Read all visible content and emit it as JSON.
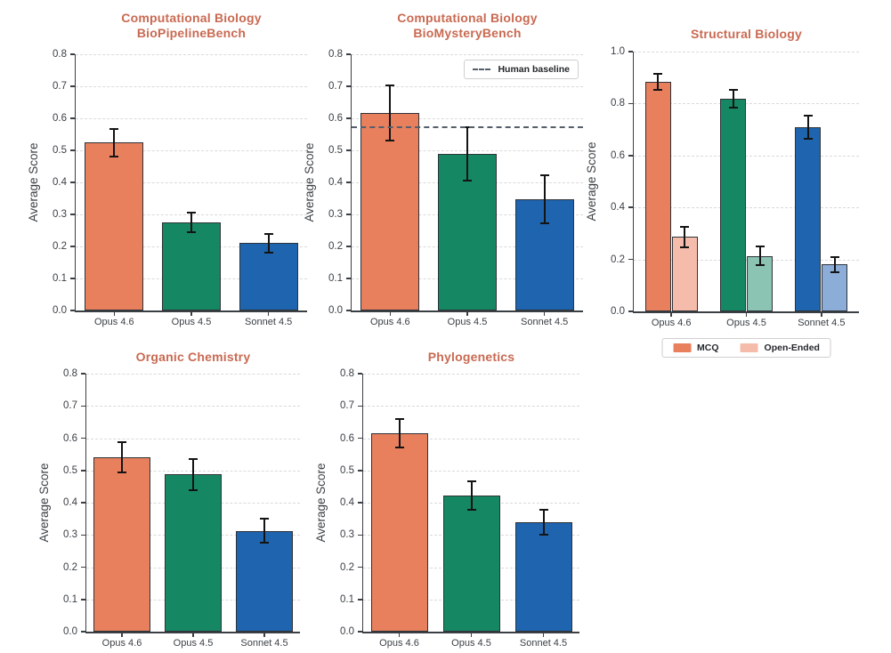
{
  "figure": {
    "background": "#FFFFFF",
    "description": "Five bar charts of model benchmark scores with error bars"
  },
  "colors": {
    "title": "#C96A52",
    "axis_text": "#3A3F44",
    "grid": "#DADADA",
    "bar_edge": "#2E3338",
    "error_bar": "#141414",
    "baseline": "#555E6B",
    "opus_46": "#E8805E",
    "opus_45": "#158863",
    "sonnet_45": "#1E64AF",
    "open_ended_orange": "#F5BCAB",
    "open_ended_green": "#8BC4B2",
    "open_ended_blue": "#8CADD8"
  },
  "chart_data": [
    {
      "id": "computational-biology-biopipelinebench",
      "type": "bar",
      "title": "Computational Biology\nBioPipelineBench",
      "ylabel": "Average Score",
      "ylim": [
        0,
        0.8
      ],
      "yticks": [
        0.0,
        0.1,
        0.2,
        0.3,
        0.4,
        0.5,
        0.6,
        0.7,
        0.8
      ],
      "grid": true,
      "categories": [
        "Opus 4.6",
        "Opus 4.5",
        "Sonnet 4.5"
      ],
      "values": [
        0.524,
        0.275,
        0.21
      ],
      "errors": [
        0.043,
        0.03,
        0.029
      ],
      "bar_colors": [
        "#E8805E",
        "#158863",
        "#1E64AF"
      ]
    },
    {
      "id": "computational-biology-biomysterybench",
      "type": "bar",
      "title": "Computational Biology\nBioMysteryBench",
      "ylabel": "Average Score",
      "ylim": [
        0,
        0.8
      ],
      "yticks": [
        0.0,
        0.1,
        0.2,
        0.3,
        0.4,
        0.5,
        0.6,
        0.7,
        0.8
      ],
      "grid": true,
      "categories": [
        "Opus 4.6",
        "Opus 4.5",
        "Sonnet 4.5"
      ],
      "values": [
        0.617,
        0.489,
        0.348
      ],
      "errors": [
        0.086,
        0.083,
        0.075
      ],
      "bar_colors": [
        "#E8805E",
        "#158863",
        "#1E64AF"
      ],
      "baseline": {
        "value": 0.575,
        "label": "Human baseline"
      },
      "legend": {
        "position": "top-right",
        "entries": [
          {
            "label": "Human baseline",
            "marker": "dashed-line"
          }
        ]
      }
    },
    {
      "id": "structural-biology",
      "type": "grouped_bar",
      "title": "Structural Biology",
      "ylabel": "Average Score",
      "ylim": [
        0,
        1.0
      ],
      "yticks": [
        0.0,
        0.2,
        0.4,
        0.6,
        0.8,
        1.0
      ],
      "grid": true,
      "categories": [
        "Opus 4.6",
        "Opus 4.5",
        "Sonnet 4.5"
      ],
      "series": [
        {
          "name": "MCQ",
          "values": [
            0.885,
            0.818,
            0.71
          ],
          "errors": [
            0.031,
            0.035,
            0.045
          ],
          "colors": [
            "#E8805E",
            "#158863",
            "#1E64AF"
          ]
        },
        {
          "name": "Open-Ended",
          "values": [
            0.287,
            0.214,
            0.18
          ],
          "errors": [
            0.04,
            0.036,
            0.03
          ],
          "colors": [
            "#F5BCAB",
            "#8BC4B2",
            "#8CADD8"
          ]
        }
      ],
      "legend": {
        "position": "bottom",
        "entries": [
          {
            "label": "MCQ",
            "swatch": "#E8805E"
          },
          {
            "label": "Open-Ended",
            "swatch": "#F5BCAB"
          }
        ]
      }
    },
    {
      "id": "organic-chemistry",
      "type": "bar",
      "title": "Organic Chemistry",
      "ylabel": "Average Score",
      "ylim": [
        0,
        0.8
      ],
      "yticks": [
        0.0,
        0.1,
        0.2,
        0.3,
        0.4,
        0.5,
        0.6,
        0.7,
        0.8
      ],
      "grid": true,
      "categories": [
        "Opus 4.6",
        "Opus 4.5",
        "Sonnet 4.5"
      ],
      "values": [
        0.54,
        0.488,
        0.313
      ],
      "errors": [
        0.047,
        0.048,
        0.038
      ],
      "bar_colors": [
        "#E8805E",
        "#158863",
        "#1E64AF"
      ]
    },
    {
      "id": "phylogenetics",
      "type": "bar",
      "title": "Phylogenetics",
      "ylabel": "Average Score",
      "ylim": [
        0,
        0.8
      ],
      "yticks": [
        0.0,
        0.1,
        0.2,
        0.3,
        0.4,
        0.5,
        0.6,
        0.7,
        0.8
      ],
      "grid": true,
      "categories": [
        "Opus 4.6",
        "Opus 4.5",
        "Sonnet 4.5"
      ],
      "values": [
        0.615,
        0.422,
        0.339
      ],
      "errors": [
        0.043,
        0.043,
        0.038
      ],
      "bar_colors": [
        "#E8805E",
        "#158863",
        "#1E64AF"
      ]
    }
  ]
}
